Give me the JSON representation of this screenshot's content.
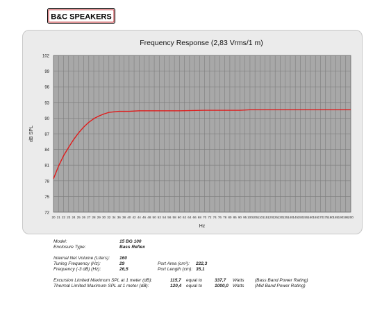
{
  "logo": {
    "text": "B&C SPEAKERS",
    "bg": "#ffffff",
    "fg": "#000000",
    "accent": "#c0272d"
  },
  "chart_data": {
    "type": "line",
    "title": "Frequency Response (2,83 Vrms/1 m)",
    "xlabel": "Hz",
    "ylabel": "dB SPL",
    "xlim": [
      20,
      200
    ],
    "ylim": [
      72,
      102
    ],
    "x_ticks": [
      20,
      21,
      22,
      23,
      24,
      25,
      26,
      27,
      28,
      29,
      30,
      32,
      34,
      36,
      38,
      40,
      42,
      44,
      46,
      48,
      50,
      52,
      54,
      56,
      58,
      60,
      62,
      64,
      66,
      68,
      70,
      72,
      74,
      76,
      78,
      80,
      85,
      90,
      95,
      100,
      105,
      110,
      115,
      120,
      125,
      130,
      135,
      140,
      145,
      150,
      155,
      160,
      165,
      170,
      175,
      180,
      185,
      190,
      195,
      200
    ],
    "y_ticks": [
      72,
      75,
      78,
      81,
      84,
      87,
      90,
      93,
      96,
      99,
      102
    ],
    "grid": true,
    "plot_bg": "#a8a8a8",
    "grid_color": "#7d7d7d",
    "series": [
      {
        "color": "#e01b1b",
        "x": [
          20,
          21,
          22,
          23,
          24,
          25,
          26,
          27,
          28,
          29,
          30,
          32,
          34,
          36,
          38,
          40,
          44,
          48,
          52,
          56,
          60,
          70,
          80,
          90,
          100,
          110,
          120,
          130,
          140,
          150,
          160,
          170,
          180,
          190,
          200
        ],
        "y": [
          78.4,
          80.8,
          82.8,
          84.4,
          85.9,
          87.2,
          88.3,
          89.2,
          89.9,
          90.4,
          90.8,
          91.1,
          91.2,
          91.3,
          91.3,
          91.3,
          91.4,
          91.4,
          91.4,
          91.4,
          91.4,
          91.5,
          91.5,
          91.5,
          91.6,
          91.6,
          91.6,
          91.6,
          91.6,
          91.6,
          91.6,
          91.6,
          91.6,
          91.6,
          91.6
        ]
      }
    ]
  },
  "specs": {
    "model_label": "Model:",
    "model_value": "15 BG 100",
    "enclosure_label": "Enclosure Type:",
    "enclosure_value": "Bass Reflex",
    "volume_label": "Internal Net Volume (Liters):",
    "volume_value": "160",
    "tuning_label": "Tuning Frequency (Hz):",
    "tuning_value": "29",
    "f3_label": "Frequency (-3 dB) (Hz):",
    "f3_value": "26,5",
    "port_area_label": "Port Area (cm²):",
    "port_area_value": "222,3",
    "port_length_label": "Port Length (cm):",
    "port_length_value": "35,1",
    "excursion_label": "Excursion Limited Maximum SPL at 1 meter (dB):",
    "excursion_value": "115,7",
    "thermal_label": "Thermal Limited Maximum SPL at 1 meter (dB):",
    "thermal_value": "120,4",
    "equal_to": "equal to",
    "excursion_watts": "337,7",
    "thermal_watts": "1000,0",
    "watts_label": "Watts",
    "excursion_note": "(Bass Band Power Rating)",
    "thermal_note": "(Mid Band Power Rating)"
  }
}
